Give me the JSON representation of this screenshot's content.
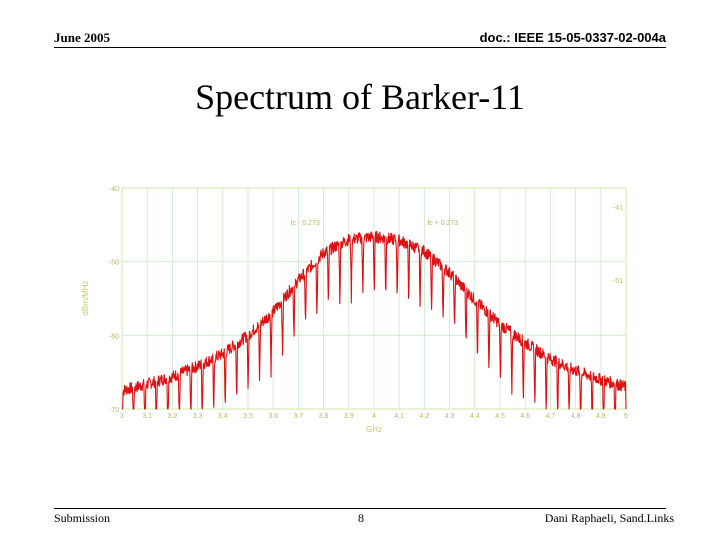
{
  "header": {
    "date": "June 2005",
    "doc_id": "doc.: IEEE 15-05-0337-02-004a"
  },
  "slide": {
    "title": "Spectrum of Barker-11"
  },
  "footer": {
    "left": "Submission",
    "page": "8",
    "author": "Dani Raphaeli, Sand.Links"
  },
  "colors": {
    "trace": "#dd1111",
    "grid": "#c8eac8",
    "frame": "#f0ee90",
    "labels": "#b8b860"
  },
  "chart_data": {
    "type": "line",
    "title": "",
    "xlabel": "GHz",
    "ylabel": "dBm/MHz",
    "x_ticks": [
      "3",
      "3.1",
      "3.2",
      "3.3",
      "3.4",
      "3.5",
      "3.6",
      "3.7",
      "3.8",
      "3.9",
      "4",
      "4.1",
      "4.2",
      "4.3",
      "4.4",
      "4.5",
      "4.6",
      "4.7",
      "4.8",
      "4.9",
      "5"
    ],
    "y_ticks_left": [
      "-40",
      "-50",
      "-60",
      "-70"
    ],
    "y_ticks_right": [
      "-41",
      "-51"
    ],
    "xlim": [
      3,
      5
    ],
    "ylim": [
      -70,
      -40
    ],
    "markers": [
      {
        "label": "fc - 0.273",
        "x": 3.727
      },
      {
        "label": "fc + 0.273",
        "x": 4.273
      }
    ],
    "envelope": {
      "x": [
        3.0,
        3.1,
        3.2,
        3.3,
        3.4,
        3.5,
        3.6,
        3.7,
        3.8,
        3.9,
        4.0,
        4.1,
        4.2,
        4.3,
        4.4,
        4.5,
        4.6,
        4.7,
        4.8,
        4.9,
        5.0
      ],
      "y": [
        -67.5,
        -66.6,
        -65.6,
        -64.2,
        -62.5,
        -60.0,
        -56.8,
        -52.5,
        -48.8,
        -47.0,
        -46.6,
        -47.1,
        -48.6,
        -51.5,
        -55.2,
        -58.5,
        -61.0,
        -63.2,
        -64.8,
        -66.0,
        -67.0
      ]
    },
    "nulls": {
      "spacing_ghz": 0.0455,
      "depth_db": 8,
      "noise_db": 0.8
    }
  }
}
